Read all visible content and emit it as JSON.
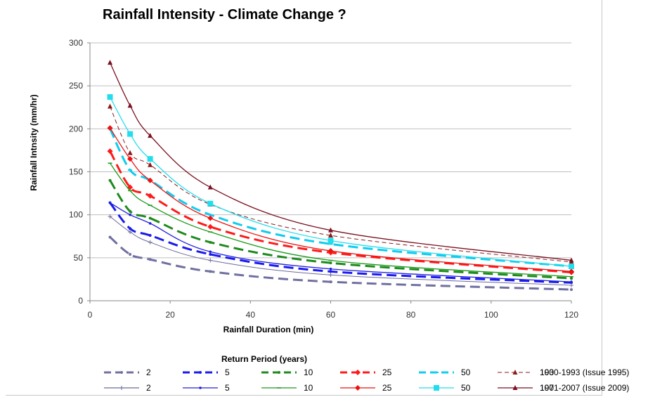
{
  "chart_data": {
    "type": "line",
    "title": "Rainfall Intensity - Climate Change ?",
    "xlabel": "Rainfall Duration (min)",
    "ylabel": "Rainfall Intnsity  (mm/hr)",
    "xlim": [
      0,
      120
    ],
    "ylim": [
      0,
      300
    ],
    "xticks": [
      0,
      20,
      40,
      60,
      80,
      100,
      120
    ],
    "yticks": [
      0,
      50,
      100,
      150,
      200,
      250,
      300
    ],
    "grid": "horizontal",
    "x": [
      5,
      10,
      15,
      30,
      60,
      120
    ],
    "legend_title": "Return Period (years)",
    "legend_position": "bottom",
    "era_labels": [
      "1930-1993  (Issue 1995)",
      "1971-2007  (Issue 2009)"
    ],
    "series": [
      {
        "name": "2",
        "era": "1930-1993",
        "values": [
          74,
          54,
          48,
          34,
          22,
          13
        ],
        "color": "#7070a0",
        "dash": true
      },
      {
        "name": "5",
        "era": "1930-1993",
        "values": [
          114,
          84,
          76,
          54,
          34,
          21
        ],
        "color": "#1a1aee",
        "dash": true
      },
      {
        "name": "10",
        "era": "1930-1993",
        "values": [
          140,
          104,
          96,
          68,
          44,
          26
        ],
        "color": "#1e8a1e",
        "dash": true
      },
      {
        "name": "25",
        "era": "1930-1993",
        "values": [
          174,
          132,
          122,
          86,
          56,
          33
        ],
        "color": "#ff1a1a",
        "dash": true
      },
      {
        "name": "50",
        "era": "1930-1993",
        "values": [
          200,
          152,
          140,
          100,
          66,
          40
        ],
        "color": "#10ccee",
        "dash": true
      },
      {
        "name": "100",
        "era": "1930-1993",
        "values": [
          226,
          172,
          158,
          112,
          76,
          45
        ],
        "color": "#8b1a1a",
        "dash": true
      },
      {
        "name": "2",
        "era": "1971-2007",
        "values": [
          98,
          80,
          68,
          47,
          30,
          18
        ],
        "color": "#6a6a9a",
        "dash": false
      },
      {
        "name": "5",
        "era": "1971-2007",
        "values": [
          114,
          100,
          90,
          57,
          37,
          22
        ],
        "color": "#2020dd",
        "dash": false
      },
      {
        "name": "10",
        "era": "1971-2007",
        "values": [
          160,
          128,
          111,
          80,
          47,
          28
        ],
        "color": "#1a9a1a",
        "dash": false
      },
      {
        "name": "25",
        "era": "1971-2007",
        "values": [
          201,
          165,
          140,
          96,
          58,
          34
        ],
        "color": "#ee1111",
        "dash": false
      },
      {
        "name": "50",
        "era": "1971-2007",
        "values": [
          237,
          194,
          165,
          113,
          70,
          40
        ],
        "color": "#22dded",
        "dash": false
      },
      {
        "name": "100",
        "era": "1971-2007",
        "values": [
          277,
          227,
          192,
          132,
          82,
          47
        ],
        "color": "#7a1020",
        "dash": false
      }
    ]
  }
}
